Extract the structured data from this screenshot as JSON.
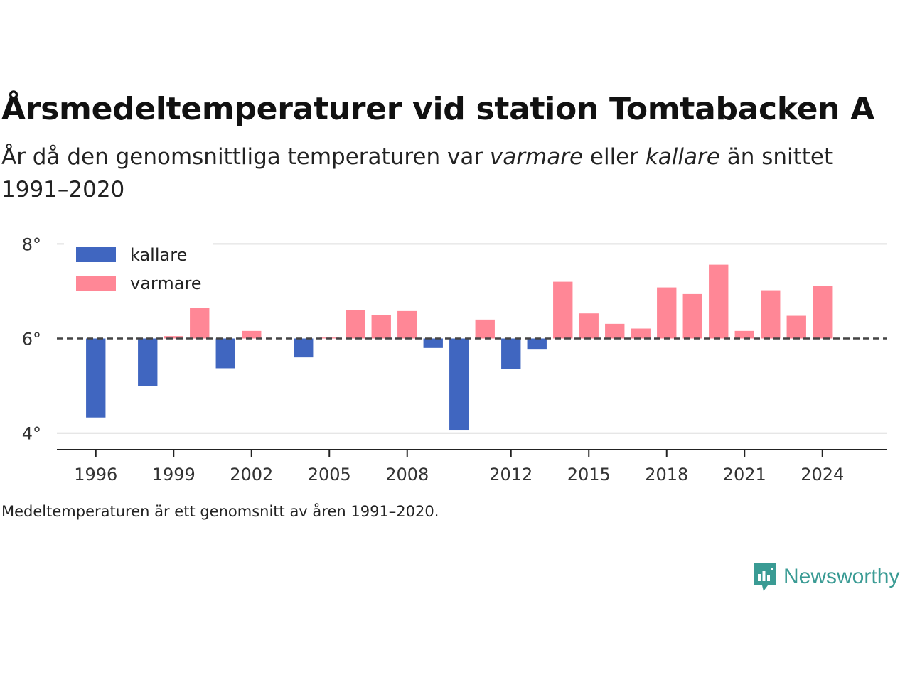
{
  "header": {
    "title": "Årsmedeltemperaturer vid station Tomtabacken A",
    "subtitle_pre": "År då den genomsnittliga temperaturen var ",
    "subtitle_warm": "varmare",
    "subtitle_mid": " eller ",
    "subtitle_cold": "kallare",
    "subtitle_post": " än snittet 1991–2020"
  },
  "footnote": "Medeltemperaturen är ett genomsnitt av åren 1991–2020.",
  "brand": {
    "name": "Newsworthy",
    "icon": "newsworthy-logo-icon",
    "color": "#3a9b94"
  },
  "chart_data": {
    "type": "bar",
    "baseline": 6.0,
    "ylim": [
      3.65,
      8.2
    ],
    "yticks": [
      4,
      6,
      8
    ],
    "ytick_labels": [
      "4°",
      "6°",
      "8°"
    ],
    "xlim": [
      1994.5,
      2026.5
    ],
    "xticks": [
      1996,
      1999,
      2002,
      2005,
      2008,
      2012,
      2015,
      2018,
      2021,
      2024
    ],
    "grid": true,
    "legend_position": "top-left",
    "colors": {
      "kallare": "#4066c0",
      "varmare": "#ff8796"
    },
    "series": [
      {
        "name": "kallare",
        "x": [
          1996,
          1998,
          2001,
          2004,
          2009,
          2010,
          2012,
          2013
        ],
        "values": [
          4.33,
          5.0,
          5.37,
          5.6,
          5.8,
          4.07,
          5.36,
          5.78
        ]
      },
      {
        "name": "varmare",
        "x": [
          1999,
          2000,
          2002,
          2005,
          2006,
          2007,
          2008,
          2011,
          2014,
          2015,
          2016,
          2017,
          2018,
          2019,
          2020,
          2021,
          2022,
          2023,
          2024
        ],
        "values": [
          6.05,
          6.65,
          6.16,
          6.02,
          6.6,
          6.5,
          6.58,
          6.4,
          7.2,
          6.53,
          6.31,
          6.21,
          7.08,
          6.94,
          7.56,
          6.16,
          7.02,
          6.48,
          7.11
        ]
      }
    ]
  }
}
